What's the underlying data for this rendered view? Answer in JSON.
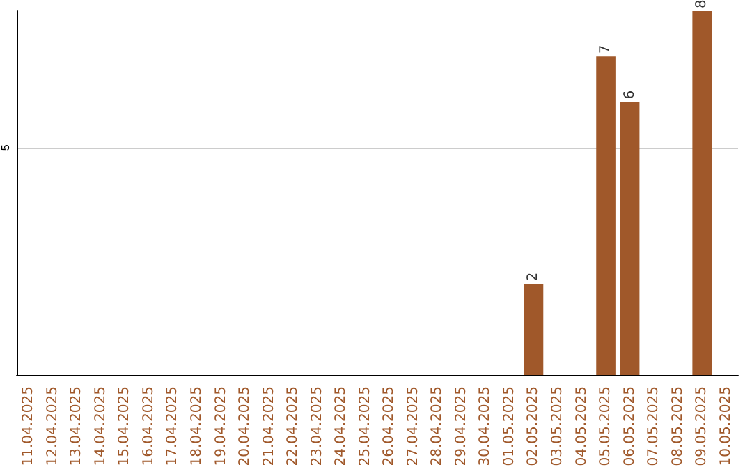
{
  "chart_data": {
    "type": "bar",
    "categories": [
      "11.04.2025",
      "12.04.2025",
      "13.04.2025",
      "14.04.2025",
      "15.04.2025",
      "16.04.2025",
      "17.04.2025",
      "18.04.2025",
      "19.04.2025",
      "20.04.2025",
      "21.04.2025",
      "22.04.2025",
      "23.04.2025",
      "24.04.2025",
      "25.04.2025",
      "26.04.2025",
      "27.04.2025",
      "28.04.2025",
      "29.04.2025",
      "30.04.2025",
      "01.05.2025",
      "02.05.2025",
      "03.05.2025",
      "04.05.2025",
      "05.05.2025",
      "06.05.2025",
      "07.05.2025",
      "08.05.2025",
      "09.05.2025",
      "10.05.2025"
    ],
    "values": [
      null,
      null,
      null,
      null,
      null,
      null,
      null,
      null,
      null,
      null,
      null,
      null,
      null,
      null,
      null,
      null,
      null,
      null,
      null,
      null,
      null,
      2,
      null,
      null,
      7,
      6,
      null,
      null,
      8,
      null
    ],
    "color": "#a0582a",
    "ylim": [
      0,
      8
    ],
    "yticks": [
      5
    ],
    "grid": "y",
    "data_labels": true
  }
}
